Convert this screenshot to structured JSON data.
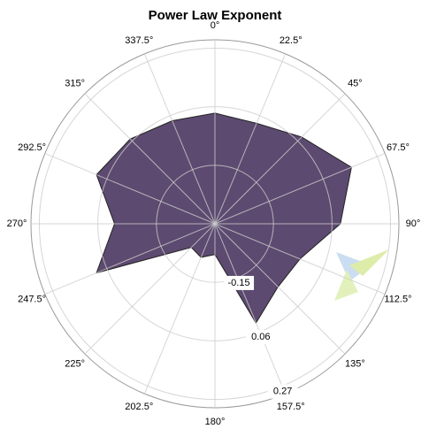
{
  "chart_data": {
    "type": "radar",
    "title": "Power Law Exponent",
    "categories": [
      "0°",
      "22.5°",
      "45°",
      "67.5°",
      "90°",
      "112.5°",
      "135°",
      "157.5°",
      "180°",
      "202.5°",
      "225°",
      "247.5°",
      "270°",
      "292.5°",
      "315°",
      "337.5°"
    ],
    "values": [
      0.037,
      0.03,
      0.08,
      0.17,
      0.09,
      -0.03,
      -0.04,
      0.025,
      -0.25,
      -0.23,
      -0.24,
      0.1,
      0.0,
      0.1,
      0.07,
      0.04
    ],
    "rlim": [
      -0.36,
      0.3
    ],
    "rticks": [
      -0.15,
      0.06,
      0.27
    ],
    "color": "#5d4a70",
    "grid": true
  }
}
